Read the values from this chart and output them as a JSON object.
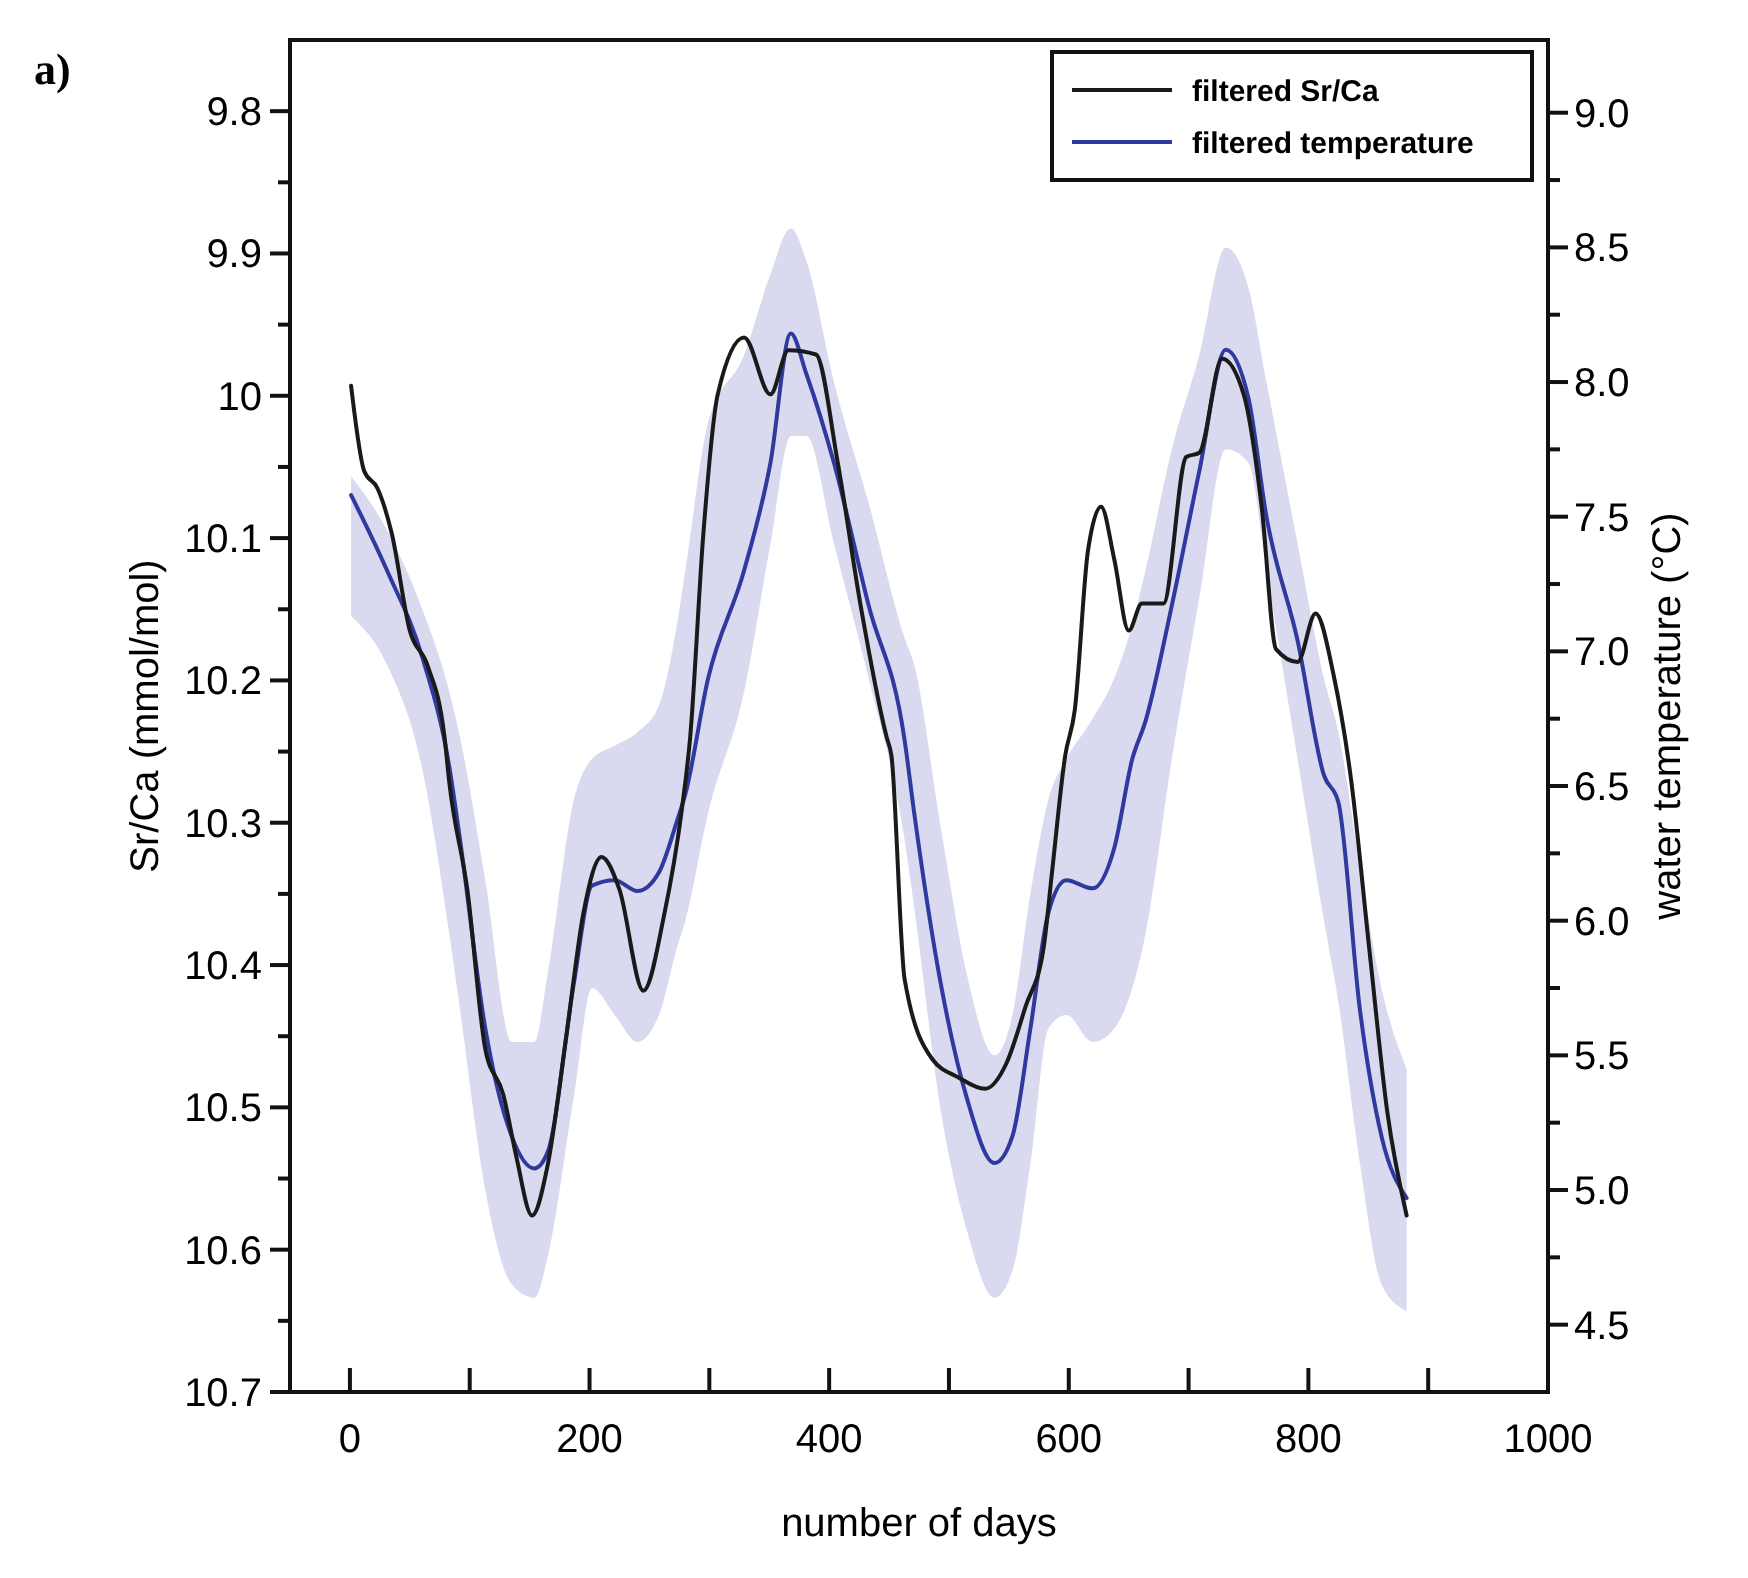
{
  "chart_data": {
    "type": "line",
    "xlabel": "number of days",
    "ylabel": "Sr/Ca (mmol/mol)",
    "y2label": "water temperature (°C)",
    "annotations": [
      "a)"
    ],
    "legend": "top right",
    "grid": false,
    "xlim": [
      -50,
      1000
    ],
    "xticks": [
      0,
      {
        "value": 100,
        "label": null
      },
      200,
      {
        "value": 300,
        "label": null
      },
      400,
      {
        "value": 500,
        "label": null
      },
      600,
      {
        "value": 700,
        "label": null
      },
      800,
      {
        "value": 900,
        "label": null
      },
      1000
    ],
    "ylim": [
      10.7,
      9.75
    ],
    "yticks": [
      9.8,
      {
        "value": 9.85,
        "label": null
      },
      9.9,
      {
        "value": 9.95,
        "label": null
      },
      10,
      {
        "value": 10.05,
        "label": null
      },
      10.1,
      {
        "value": 10.15,
        "label": null
      },
      10.2,
      {
        "value": 10.25,
        "label": null
      },
      10.3,
      {
        "value": 10.35,
        "label": null
      },
      10.4,
      {
        "value": 10.45,
        "label": null
      },
      10.5,
      {
        "value": 10.55,
        "label": null
      },
      10.6,
      {
        "value": 10.65,
        "label": null
      },
      10.7
    ],
    "y2lim": [
      4.25,
      9.27
    ],
    "y2ticks": [
      4.5,
      {
        "value": 4.75,
        "label": null
      },
      {
        "value": 5,
        "label": "5.0"
      },
      {
        "value": 5.25,
        "label": null
      },
      5.5,
      {
        "value": 5.75,
        "label": null
      },
      {
        "value": 6,
        "label": "6.0"
      },
      {
        "value": 6.25,
        "label": null
      },
      6.5,
      {
        "value": 6.75,
        "label": null
      },
      {
        "value": 7,
        "label": "7.0"
      },
      {
        "value": 7.25,
        "label": null
      },
      7.5,
      {
        "value": 7.75,
        "label": null
      },
      {
        "value": 8,
        "label": "8.0"
      },
      {
        "value": 8.25,
        "label": null
      },
      8.5,
      {
        "value": 8.75,
        "label": null
      },
      {
        "value": 9,
        "label": "9.0"
      }
    ],
    "series": [
      {
        "name": "filtered temperature",
        "color": "#2e3a9e",
        "axis": "y2",
        "x": [
          1,
          31,
          61,
          83,
          91,
          113,
          135,
          154,
          165,
          187,
          202,
          221,
          240,
          258,
          273,
          280,
          299,
          329,
          351,
          368,
          381,
          404,
          433,
          463,
          471,
          493,
          515,
          538,
          553,
          568,
          583,
          598,
          620,
          638,
          653,
          664,
          686,
          709,
          731,
          750,
          765,
          791,
          813,
          825,
          843,
          861,
          882
        ],
        "values": [
          7.58,
          7.3,
          6.97,
          6.57,
          6.33,
          5.6,
          5.2,
          5.08,
          5.14,
          5.77,
          6.13,
          6.15,
          6.11,
          6.18,
          6.37,
          6.47,
          6.9,
          7.3,
          7.7,
          8.18,
          8.03,
          7.7,
          7.17,
          6.67,
          6.4,
          5.77,
          5.34,
          5.1,
          5.2,
          5.6,
          6.03,
          6.15,
          6.12,
          6.27,
          6.6,
          6.74,
          7.17,
          7.67,
          8.12,
          7.94,
          7.5,
          7.04,
          6.54,
          6.44,
          5.67,
          5.2,
          4.97
        ],
        "lower": [
          7.13,
          6.95,
          6.55,
          5.95,
          5.7,
          5.0,
          4.65,
          4.6,
          4.75,
          5.35,
          5.75,
          5.65,
          5.55,
          5.65,
          5.9,
          6.0,
          6.4,
          6.85,
          7.4,
          7.8,
          7.8,
          7.4,
          6.9,
          6.3,
          6.05,
          5.3,
          4.85,
          4.6,
          4.7,
          5.1,
          5.6,
          5.65,
          5.55,
          5.6,
          5.75,
          5.95,
          6.6,
          7.2,
          7.75,
          7.7,
          7.3,
          6.6,
          6.0,
          5.7,
          5.1,
          4.65,
          4.55
        ],
        "upper": [
          7.65,
          7.45,
          7.15,
          6.85,
          6.7,
          6.15,
          5.55,
          5.55,
          5.8,
          6.45,
          6.6,
          6.65,
          6.7,
          6.8,
          7.1,
          7.3,
          7.85,
          8.1,
          8.4,
          8.57,
          8.45,
          8.0,
          7.55,
          7.05,
          6.95,
          6.35,
          5.8,
          5.5,
          5.65,
          6.1,
          6.45,
          6.6,
          6.75,
          6.9,
          7.1,
          7.3,
          7.75,
          8.1,
          8.5,
          8.35,
          8.0,
          7.4,
          6.9,
          6.7,
          6.2,
          5.75,
          5.45
        ]
      },
      {
        "name": "filtered Sr/Ca",
        "color": "#1a1a1a",
        "x": [
          1,
          12,
          23,
          35,
          50,
          65,
          79,
          83,
          98,
          113,
          128,
          139,
          152,
          165,
          180,
          195,
          210,
          225,
          245,
          262,
          277,
          284,
          295,
          307,
          329,
          351,
          366,
          389,
          407,
          426,
          448,
          452,
          463,
          486,
          508,
          530,
          548,
          564,
          579,
          586,
          597,
          605,
          616,
          627,
          638,
          650,
          661,
          679,
          698,
          709,
          728,
          746,
          761,
          773,
          791,
          806,
          821,
          836,
          851,
          866,
          882
        ],
        "values": [
          9.993,
          10.053,
          10.065,
          10.097,
          10.165,
          10.19,
          10.24,
          10.272,
          10.347,
          10.459,
          10.491,
          10.535,
          10.576,
          10.541,
          10.454,
          10.363,
          10.324,
          10.347,
          10.418,
          10.366,
          10.291,
          10.24,
          10.097,
          9.999,
          9.959,
          9.999,
          9.968,
          9.971,
          10.046,
          10.146,
          10.24,
          10.253,
          10.41,
          10.466,
          10.479,
          10.487,
          10.469,
          10.429,
          10.388,
          10.335,
          10.253,
          10.221,
          10.109,
          10.078,
          10.115,
          10.165,
          10.146,
          10.146,
          10.043,
          10.04,
          9.974,
          9.999,
          10.078,
          10.178,
          10.187,
          10.153,
          10.196,
          10.272,
          10.39,
          10.504,
          10.576
        ]
      }
    ]
  }
}
